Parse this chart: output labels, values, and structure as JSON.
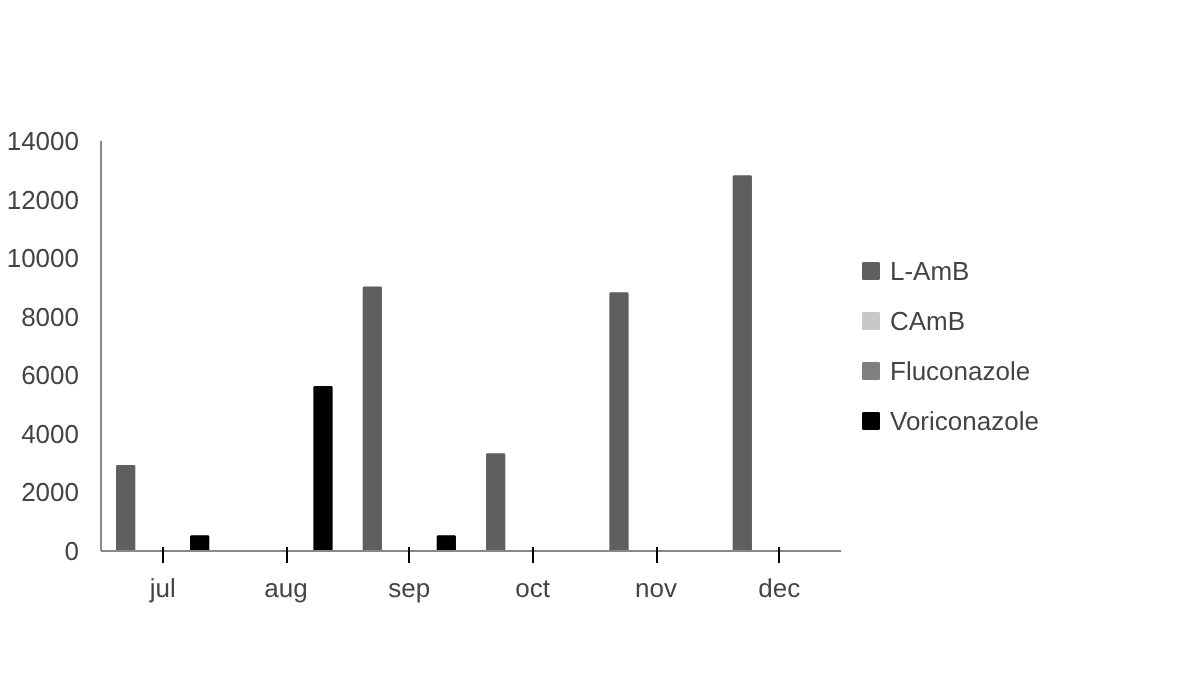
{
  "chart_data": {
    "type": "bar",
    "categories": [
      "jul",
      "aug",
      "sep",
      "oct",
      "nov",
      "dec"
    ],
    "series": [
      {
        "name": "L-AmB",
        "color": "#5f5f5f",
        "values": [
          2900,
          0,
          9000,
          3300,
          8800,
          12800
        ]
      },
      {
        "name": "CAmB",
        "color": "#c8c8c8",
        "values": [
          0,
          0,
          0,
          0,
          0,
          0
        ]
      },
      {
        "name": "Fluconazole",
        "color": "#7f7f7f",
        "values": [
          0,
          0,
          0,
          0,
          0,
          0
        ]
      },
      {
        "name": "Voriconazole",
        "color": "#000000",
        "values": [
          500,
          5600,
          500,
          0,
          0,
          0
        ]
      }
    ],
    "ylim": [
      0,
      14000
    ],
    "yticks": [
      0,
      2000,
      4000,
      6000,
      8000,
      10000,
      12000,
      14000
    ],
    "grid": false,
    "legend": "right"
  }
}
